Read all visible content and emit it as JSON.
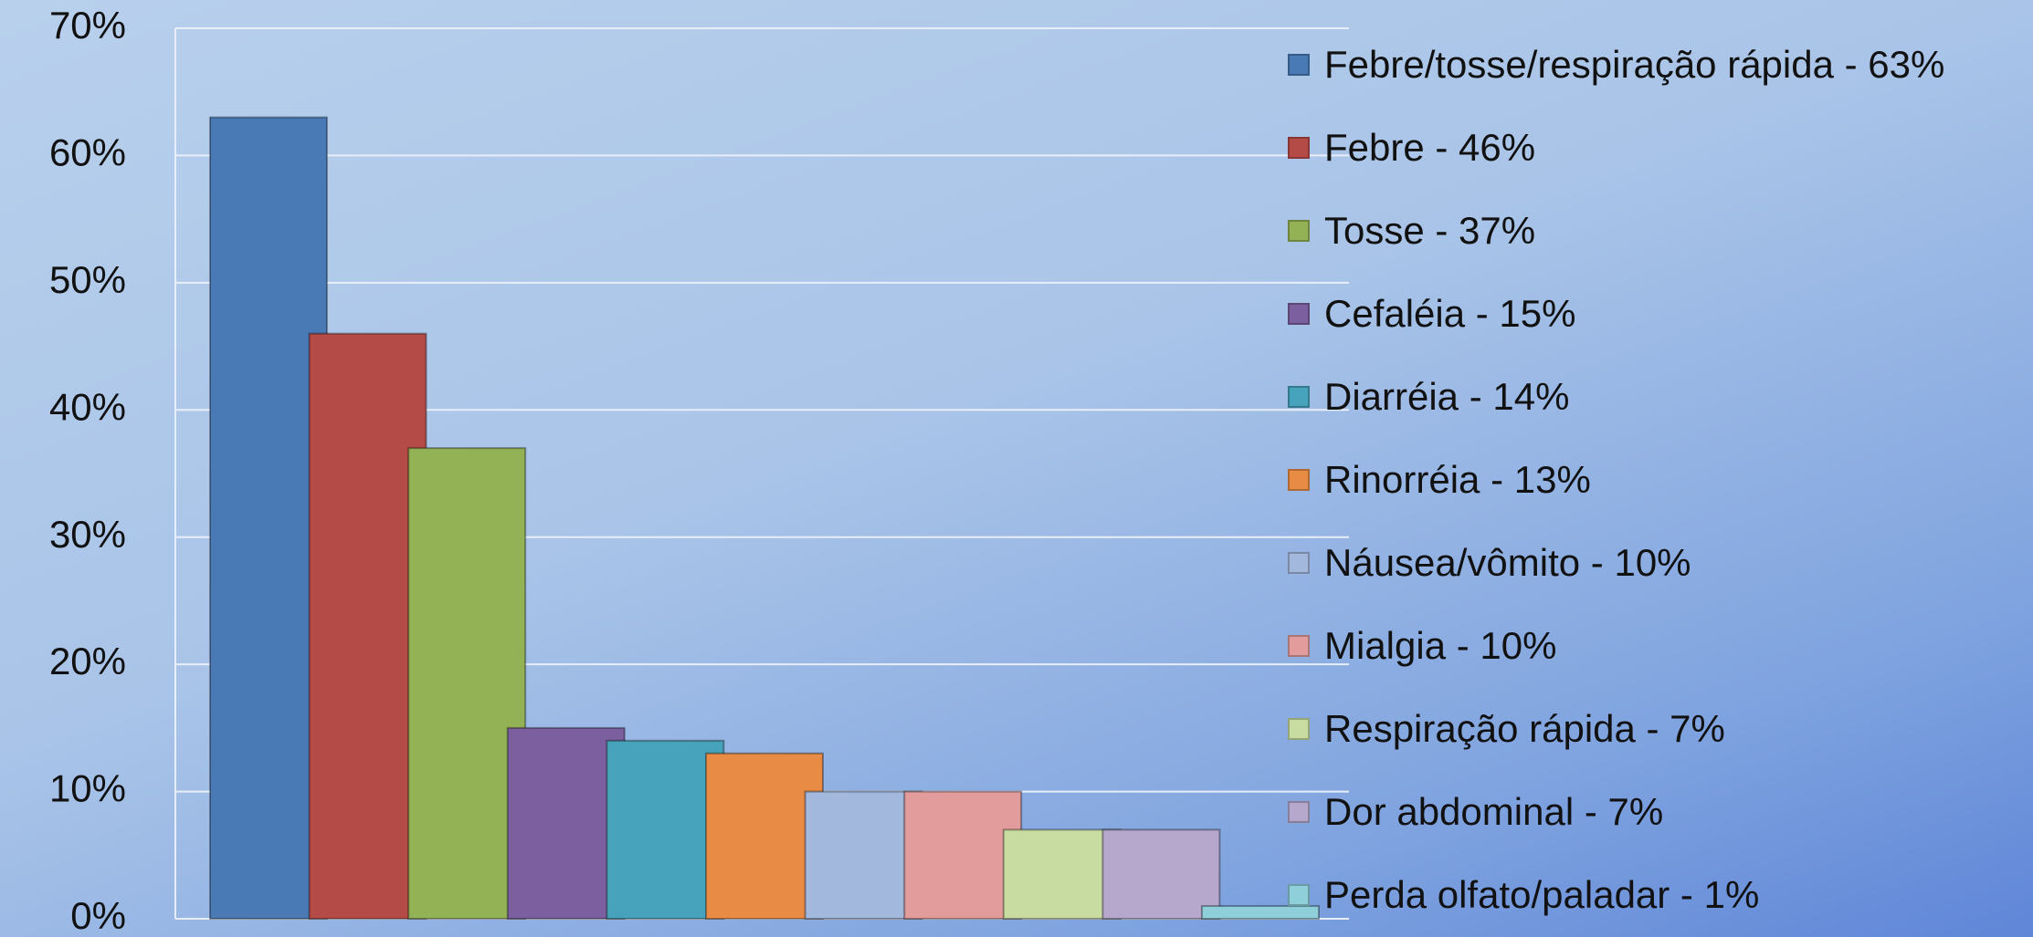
{
  "chart_data": {
    "type": "bar",
    "series": [
      {
        "name": "Febre/tosse/respiração rápida - 63%",
        "color": "#4a7ab5",
        "values": [
          63
        ]
      },
      {
        "name": "Febre - 46%",
        "color": "#b54b47",
        "values": [
          46
        ]
      },
      {
        "name": "Tosse - 37%",
        "color": "#93b155",
        "values": [
          37
        ]
      },
      {
        "name": "Cefaléia - 15%",
        "color": "#7b5f9e",
        "values": [
          15
        ]
      },
      {
        "name": "Diarréia - 14%",
        "color": "#46a3bb",
        "values": [
          14
        ]
      },
      {
        "name": "Rinorréia - 13%",
        "color": "#e88c45",
        "values": [
          13
        ]
      },
      {
        "name": "Náusea/vômito - 10%",
        "color": "#a3b8dd",
        "values": [
          10
        ]
      },
      {
        "name": "Mialgia - 10%",
        "color": "#e39c9c",
        "values": [
          10
        ]
      },
      {
        "name": "Respiração rápida - 7%",
        "color": "#c8dba0",
        "values": [
          7
        ]
      },
      {
        "name": "Dor abdominal - 7%",
        "color": "#b6a8cc",
        "values": [
          7
        ]
      },
      {
        "name": "Perda olfato/paladar - 1%",
        "color": "#8ecfda",
        "values": [
          1
        ]
      }
    ],
    "ylim": [
      0,
      70
    ],
    "yticks": [
      {
        "value": 0,
        "label": "0%"
      },
      {
        "value": 10,
        "label": "10%"
      },
      {
        "value": 20,
        "label": "20%"
      },
      {
        "value": 30,
        "label": "30%"
      },
      {
        "value": 40,
        "label": "40%"
      },
      {
        "value": 50,
        "label": "50%"
      },
      {
        "value": 60,
        "label": "60%"
      },
      {
        "value": 70,
        "label": "70%"
      }
    ],
    "grid": true,
    "legend": "right"
  }
}
